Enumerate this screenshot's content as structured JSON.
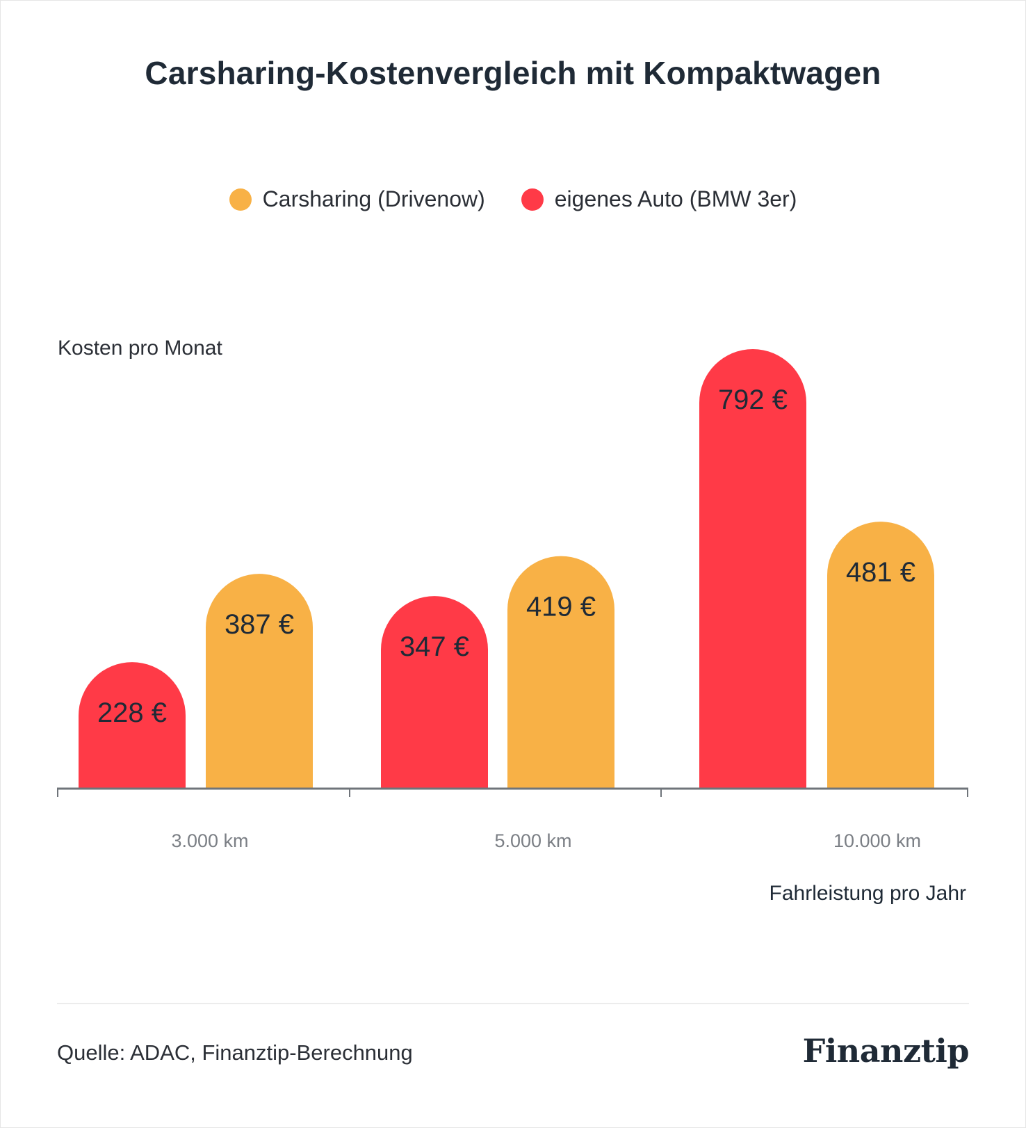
{
  "title": "Carsharing-Kostenvergleich mit Kompaktwagen",
  "legend": [
    {
      "label": "Carsharing (Drivenow)",
      "color": "#F8B146"
    },
    {
      "label": "eigenes Auto (BMW 3er)",
      "color": "#FF3A47"
    }
  ],
  "footer": {
    "source": "Quelle: ADAC, Finanztip-Berechnung",
    "logo": "Finanztip"
  },
  "chart_data": {
    "type": "bar",
    "title": "Carsharing-Kostenvergleich mit Kompaktwagen",
    "ylabel": "Kosten pro Monat",
    "xlabel": "Fahrleistung pro Jahr",
    "categories": [
      "3.000 km",
      "5.000 km",
      "10.000 km"
    ],
    "series": [
      {
        "name": "eigenes Auto (BMW 3er)",
        "color": "#FF3A47",
        "values": [
          228,
          347,
          792
        ],
        "labels": [
          "228 €",
          "347 €",
          "792 €"
        ]
      },
      {
        "name": "Carsharing (Drivenow)",
        "color": "#F8B146",
        "values": [
          387,
          419,
          481
        ],
        "labels": [
          "387 €",
          "419 €",
          "481 €"
        ]
      }
    ],
    "ylim": [
      0,
      792
    ],
    "grid": false,
    "legend_position": "top-center"
  }
}
